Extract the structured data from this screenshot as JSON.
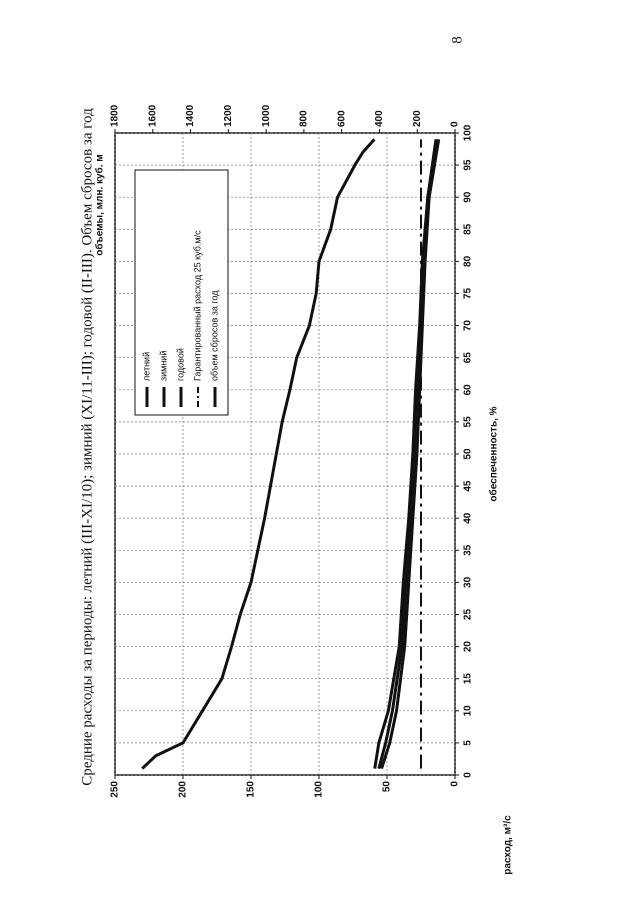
{
  "page_number": "8",
  "chart_data": {
    "type": "line",
    "title": "Средние расходы за периоды: летний (III-XI/10); зимний (XI/11-III); годовой (II-III). Объем сбросов за год",
    "x_label": "обеспеченность, %",
    "y_label": "расход, м³/с",
    "y2_label": "объемы, млн. куб. м",
    "xlim": [
      0,
      100
    ],
    "xticks": [
      0,
      5,
      10,
      15,
      20,
      25,
      30,
      35,
      40,
      45,
      50,
      55,
      60,
      65,
      70,
      75,
      80,
      85,
      90,
      95,
      100
    ],
    "ylim": [
      0,
      250
    ],
    "yticks": [
      0,
      50,
      100,
      150,
      200,
      250
    ],
    "y2lim": [
      0,
      1800
    ],
    "y2ticks": [
      0,
      200,
      400,
      600,
      800,
      1000,
      1200,
      1400,
      1600,
      1800
    ],
    "grid": true,
    "series": [
      {
        "name": "летний",
        "color": "#111111",
        "style": "solid",
        "x": [
          1,
          5,
          10,
          20,
          30,
          40,
          50,
          60,
          70,
          80,
          90,
          99
        ],
        "values": [
          59,
          56,
          49,
          41,
          38,
          34,
          31,
          29,
          26,
          24,
          20,
          14
        ]
      },
      {
        "name": "зимний",
        "color": "#111111",
        "style": "solid",
        "x": [
          1,
          5,
          10,
          20,
          30,
          40,
          50,
          60,
          70,
          80,
          90,
          99
        ],
        "values": [
          54,
          48,
          43,
          37,
          34,
          31,
          28,
          26,
          24,
          22,
          19,
          12
        ]
      },
      {
        "name": "годовой",
        "color": "#111111",
        "style": "solid",
        "x": [
          1,
          5,
          10,
          20,
          30,
          40,
          50,
          60,
          70,
          80,
          90,
          99
        ],
        "values": [
          56,
          51,
          46,
          39,
          36,
          33,
          30,
          28,
          25,
          23,
          20,
          13
        ]
      },
      {
        "name": "Гарантированный расход 25 куб.м/с",
        "color": "#111111",
        "style": "dashdot",
        "x": [
          1,
          99
        ],
        "values": [
          25,
          25
        ]
      },
      {
        "name": "объем сбросов за год",
        "color": "#111111",
        "style": "solid",
        "axis": "y2",
        "x": [
          1,
          3,
          5,
          10,
          15,
          20,
          25,
          30,
          35,
          40,
          45,
          50,
          55,
          60,
          65,
          70,
          75,
          80,
          85,
          90,
          95,
          97,
          99
        ],
        "values": [
          1656,
          1584,
          1440,
          1337,
          1234,
          1183,
          1137,
          1080,
          1044,
          1008,
          977,
          946,
          915,
          874,
          838,
          771,
          735,
          720,
          658,
          622,
          530,
          488,
          427
        ]
      }
    ]
  }
}
